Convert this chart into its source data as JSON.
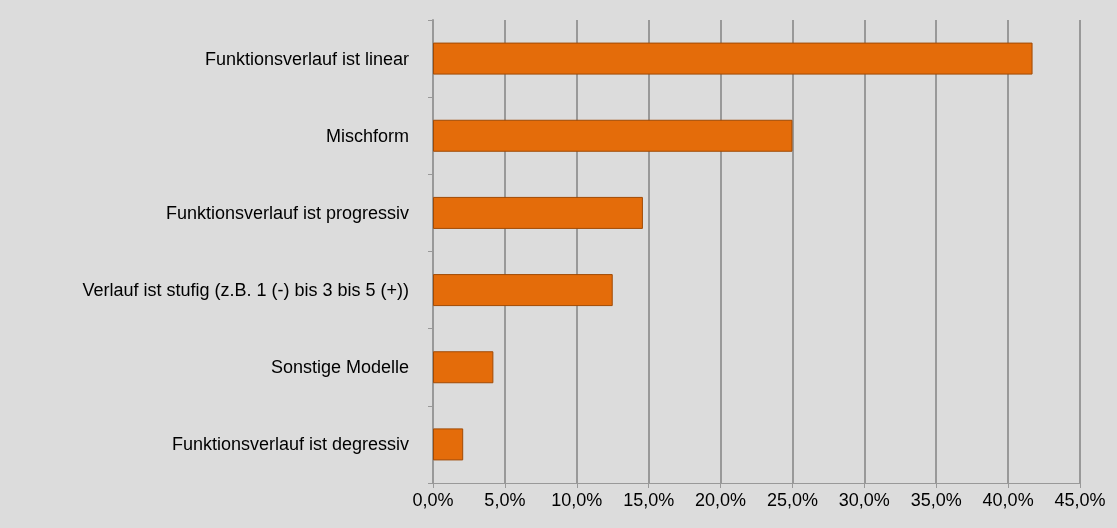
{
  "chart_data": {
    "type": "bar",
    "orientation": "horizontal",
    "categories": [
      "Funktionsverlauf ist linear",
      "Mischform",
      "Funktionsverlauf ist progressiv",
      "Verlauf ist stufig (z.B. 1 (-) bis 3 bis 5 (+))",
      "Sonstige Modelle",
      "Funktionsverlauf ist degressiv"
    ],
    "values": [
      41.7,
      25.0,
      14.6,
      12.5,
      4.2,
      2.1
    ],
    "color": "#e46c0a",
    "xlim": [
      0,
      45
    ],
    "xticks": [
      {
        "value": 0,
        "label": "0,0%"
      },
      {
        "value": 5,
        "label": "5,0%"
      },
      {
        "value": 10,
        "label": "10,0%"
      },
      {
        "value": 15,
        "label": "15,0%"
      },
      {
        "value": 20,
        "label": "20,0%"
      },
      {
        "value": 25,
        "label": "25,0%"
      },
      {
        "value": 30,
        "label": "30,0%"
      },
      {
        "value": 35,
        "label": "35,0%"
      },
      {
        "value": 40,
        "label": "40,0%"
      },
      {
        "value": 45,
        "label": "45,0%"
      }
    ],
    "grid": "x"
  }
}
